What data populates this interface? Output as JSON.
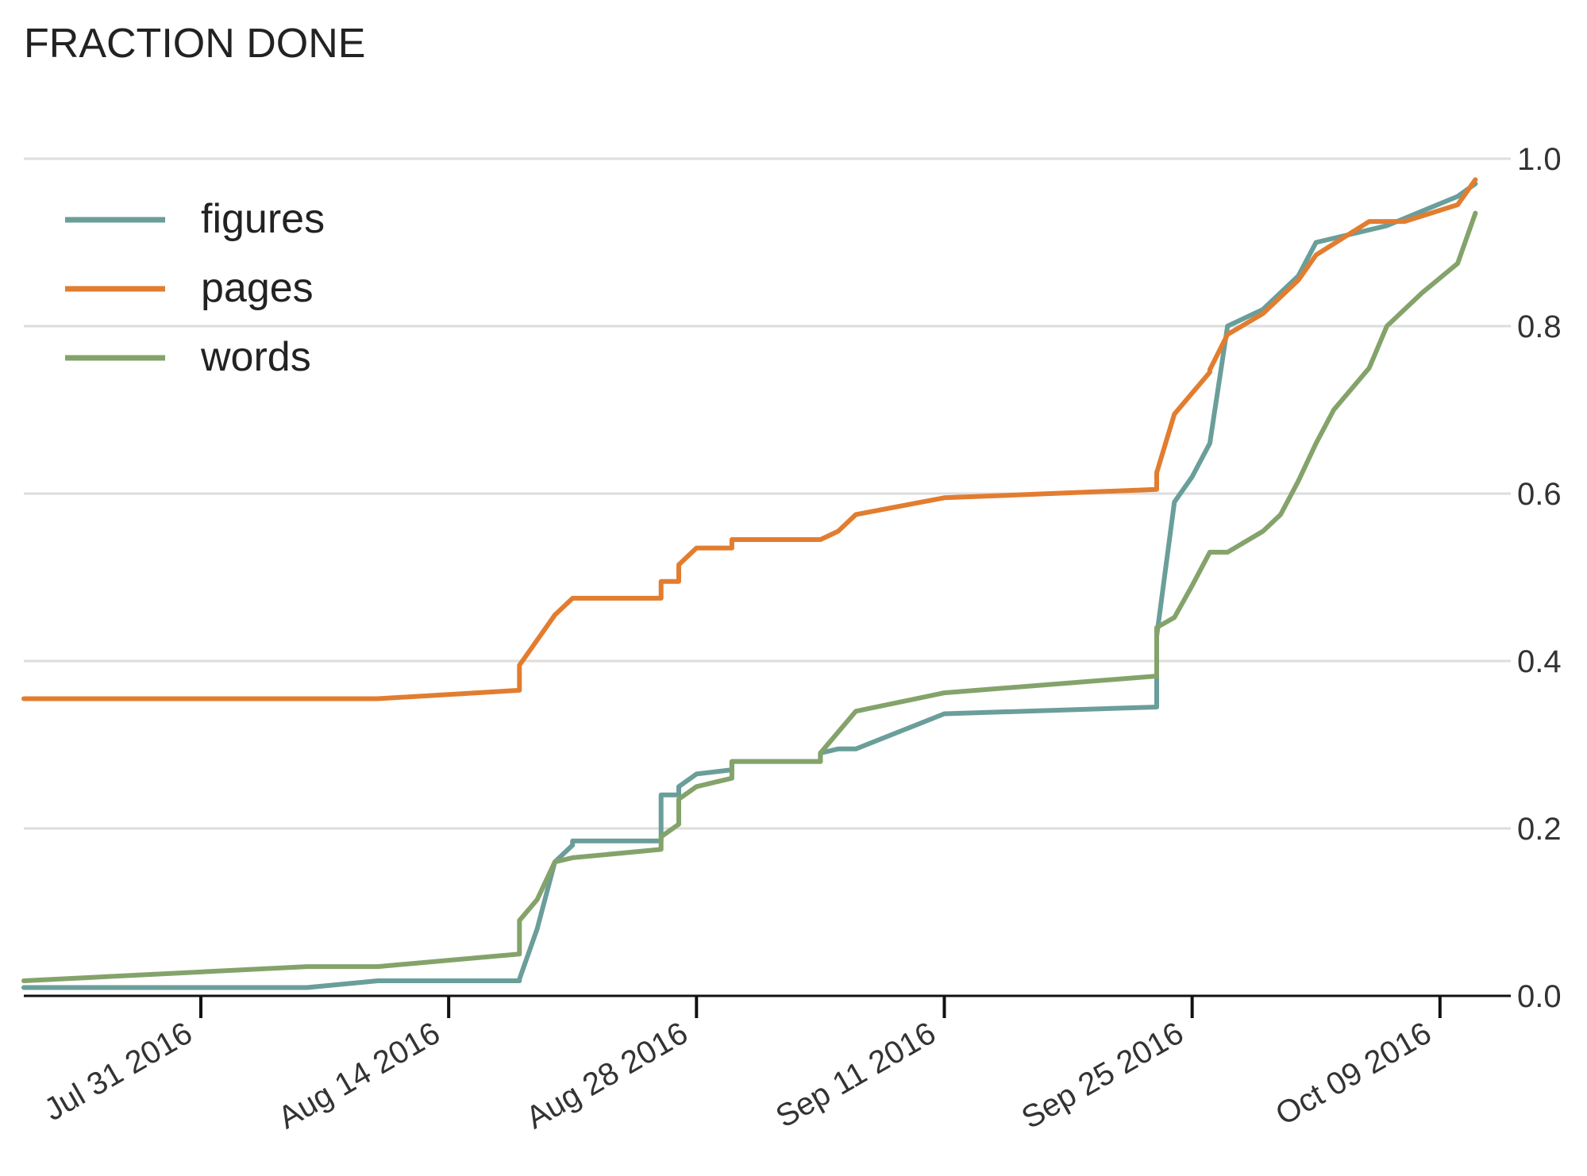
{
  "chart_data": {
    "type": "line",
    "title": "FRACTION DONE",
    "xlabel": "",
    "ylabel": "",
    "x_axis": "date",
    "xlim": [
      "2016-07-21",
      "2016-10-13"
    ],
    "ylim": [
      0,
      1.0
    ],
    "x_ticks": [
      "2016-07-31",
      "2016-08-14",
      "2016-08-28",
      "2016-09-11",
      "2016-09-25",
      "2016-10-09"
    ],
    "x_tick_labels": [
      "Jul 31 2016",
      "Aug 14 2016",
      "Aug 28 2016",
      "Sep 11 2016",
      "Sep 25 2016",
      "Oct 09 2016"
    ],
    "y_ticks": [
      0.0,
      0.2,
      0.4,
      0.6,
      0.8,
      1.0
    ],
    "y_tick_labels": [
      "0.0",
      "0.2",
      "0.4",
      "0.6",
      "0.8",
      "1.0"
    ],
    "y_axis_side": "right",
    "grid": "horizontal",
    "legend_position": "top-left",
    "series": [
      {
        "name": "figures",
        "color": "#6a9e9a",
        "points": [
          [
            "2016-07-21",
            0.01
          ],
          [
            "2016-08-06",
            0.01
          ],
          [
            "2016-08-10",
            0.018
          ],
          [
            "2016-08-18",
            0.018
          ],
          [
            "2016-08-18",
            0.02
          ],
          [
            "2016-08-19",
            0.08
          ],
          [
            "2016-08-20",
            0.16
          ],
          [
            "2016-08-21",
            0.18
          ],
          [
            "2016-08-21",
            0.185
          ],
          [
            "2016-08-26",
            0.185
          ],
          [
            "2016-08-26",
            0.24
          ],
          [
            "2016-08-27",
            0.24
          ],
          [
            "2016-08-27",
            0.25
          ],
          [
            "2016-08-28",
            0.265
          ],
          [
            "2016-08-30",
            0.27
          ],
          [
            "2016-08-30",
            0.28
          ],
          [
            "2016-09-04",
            0.28
          ],
          [
            "2016-09-04",
            0.29
          ],
          [
            "2016-09-05",
            0.295
          ],
          [
            "2016-09-06",
            0.295
          ],
          [
            "2016-09-11",
            0.337
          ],
          [
            "2016-09-23",
            0.345
          ],
          [
            "2016-09-23",
            0.43
          ],
          [
            "2016-09-24",
            0.59
          ],
          [
            "2016-09-25",
            0.62
          ],
          [
            "2016-09-26",
            0.66
          ],
          [
            "2016-09-27",
            0.8
          ],
          [
            "2016-09-29",
            0.82
          ],
          [
            "2016-10-01",
            0.86
          ],
          [
            "2016-10-02",
            0.9
          ],
          [
            "2016-10-06",
            0.92
          ],
          [
            "2016-10-10",
            0.955
          ],
          [
            "2016-10-11",
            0.97
          ]
        ]
      },
      {
        "name": "pages",
        "color": "#e27d30",
        "points": [
          [
            "2016-07-21",
            0.355
          ],
          [
            "2016-08-10",
            0.355
          ],
          [
            "2016-08-18",
            0.365
          ],
          [
            "2016-08-18",
            0.395
          ],
          [
            "2016-08-20",
            0.455
          ],
          [
            "2016-08-21",
            0.475
          ],
          [
            "2016-08-26",
            0.475
          ],
          [
            "2016-08-26",
            0.495
          ],
          [
            "2016-08-27",
            0.495
          ],
          [
            "2016-08-27",
            0.515
          ],
          [
            "2016-08-28",
            0.535
          ],
          [
            "2016-08-30",
            0.535
          ],
          [
            "2016-08-30",
            0.545
          ],
          [
            "2016-09-04",
            0.545
          ],
          [
            "2016-09-05",
            0.555
          ],
          [
            "2016-09-06",
            0.575
          ],
          [
            "2016-09-11",
            0.595
          ],
          [
            "2016-09-23",
            0.605
          ],
          [
            "2016-09-23",
            0.625
          ],
          [
            "2016-09-24",
            0.695
          ],
          [
            "2016-09-26",
            0.745
          ],
          [
            "2016-09-26",
            0.748
          ],
          [
            "2016-09-27",
            0.79
          ],
          [
            "2016-09-29",
            0.815
          ],
          [
            "2016-10-01",
            0.855
          ],
          [
            "2016-10-02",
            0.885
          ],
          [
            "2016-10-05",
            0.925
          ],
          [
            "2016-10-07",
            0.925
          ],
          [
            "2016-10-10",
            0.945
          ],
          [
            "2016-10-11",
            0.975
          ]
        ]
      },
      {
        "name": "words",
        "color": "#84a36a",
        "points": [
          [
            "2016-07-21",
            0.018
          ],
          [
            "2016-08-06",
            0.035
          ],
          [
            "2016-08-10",
            0.035
          ],
          [
            "2016-08-18",
            0.05
          ],
          [
            "2016-08-18",
            0.09
          ],
          [
            "2016-08-19",
            0.115
          ],
          [
            "2016-08-20",
            0.16
          ],
          [
            "2016-08-21",
            0.165
          ],
          [
            "2016-08-26",
            0.175
          ],
          [
            "2016-08-26",
            0.19
          ],
          [
            "2016-08-27",
            0.205
          ],
          [
            "2016-08-27",
            0.235
          ],
          [
            "2016-08-28",
            0.25
          ],
          [
            "2016-08-30",
            0.26
          ],
          [
            "2016-08-30",
            0.28
          ],
          [
            "2016-09-04",
            0.28
          ],
          [
            "2016-09-04",
            0.29
          ],
          [
            "2016-09-06",
            0.34
          ],
          [
            "2016-09-11",
            0.362
          ],
          [
            "2016-09-23",
            0.382
          ],
          [
            "2016-09-23",
            0.44
          ],
          [
            "2016-09-24",
            0.452
          ],
          [
            "2016-09-25",
            0.49
          ],
          [
            "2016-09-26",
            0.53
          ],
          [
            "2016-09-27",
            0.53
          ],
          [
            "2016-09-29",
            0.555
          ],
          [
            "2016-09-30",
            0.575
          ],
          [
            "2016-10-01",
            0.615
          ],
          [
            "2016-10-02",
            0.66
          ],
          [
            "2016-10-03",
            0.7
          ],
          [
            "2016-10-05",
            0.75
          ],
          [
            "2016-10-06",
            0.8
          ],
          [
            "2016-10-08",
            0.84
          ],
          [
            "2016-10-10",
            0.875
          ],
          [
            "2016-10-11",
            0.935
          ]
        ]
      }
    ]
  }
}
